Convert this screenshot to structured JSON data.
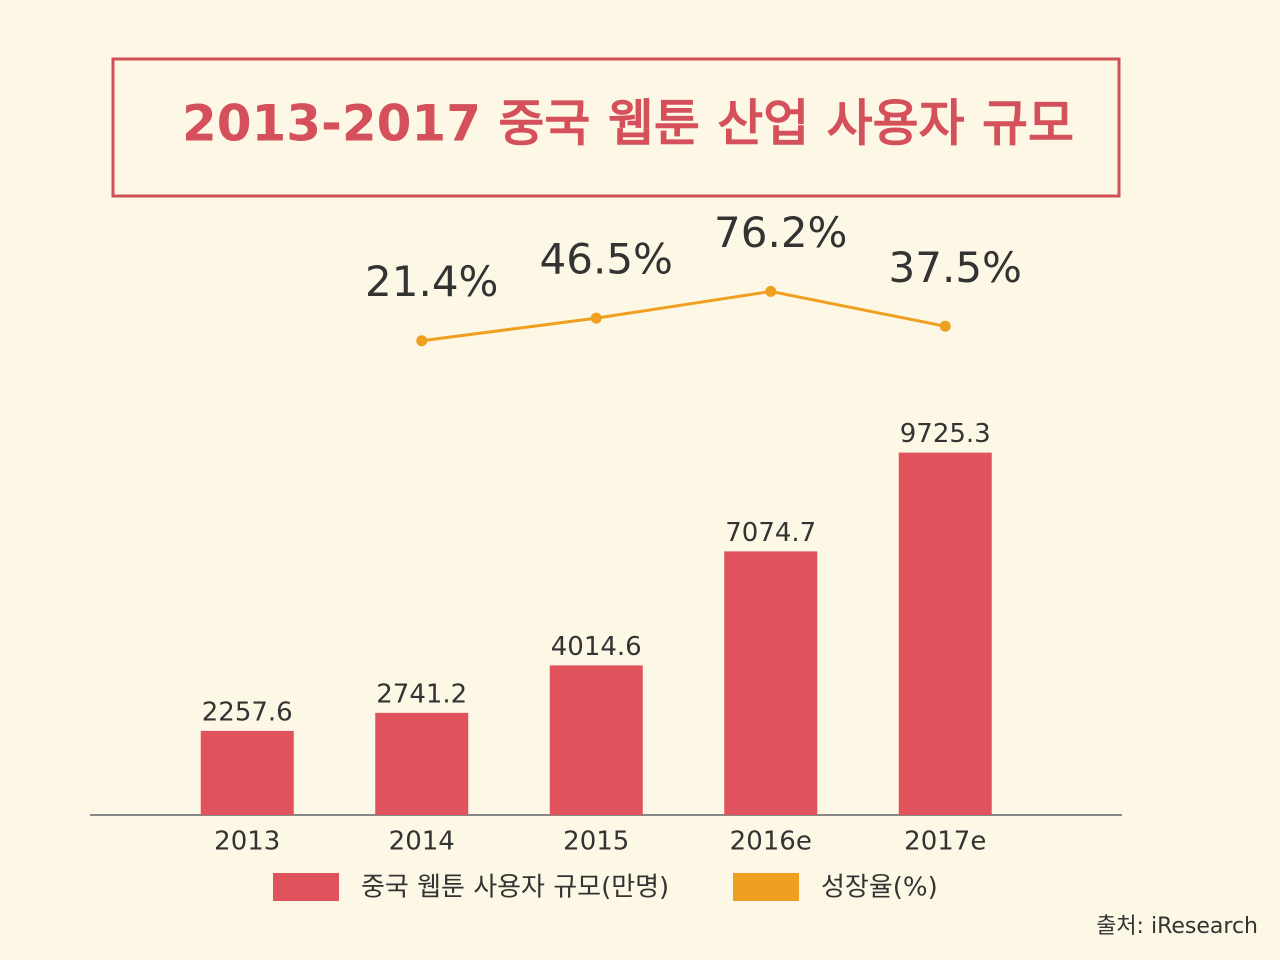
{
  "chart_data": {
    "type": "bar",
    "title": "2013-2017 중국 웹툰 산업 사용자 규모",
    "categories": [
      "2013",
      "2014",
      "2015",
      "2016e",
      "2017e"
    ],
    "series": [
      {
        "name": "중국 웹툰 사용자 규모(만명)",
        "type": "bar",
        "color": "#e0535c",
        "values": [
          2257.6,
          2741.2,
          4014.6,
          7074.7,
          9725.3
        ]
      },
      {
        "name": "성장율(%)",
        "type": "line",
        "axis": "y2",
        "color": "#f0a020",
        "values": [
          null,
          21.4,
          46.5,
          76.2,
          37.5
        ],
        "value_labels": [
          null,
          "21.4%",
          "46.5%",
          "76.2%",
          "37.5%"
        ]
      }
    ],
    "ylim": [
      0,
      10600
    ],
    "y2lim": [
      0,
      100
    ],
    "source": "출처: iResearch"
  }
}
